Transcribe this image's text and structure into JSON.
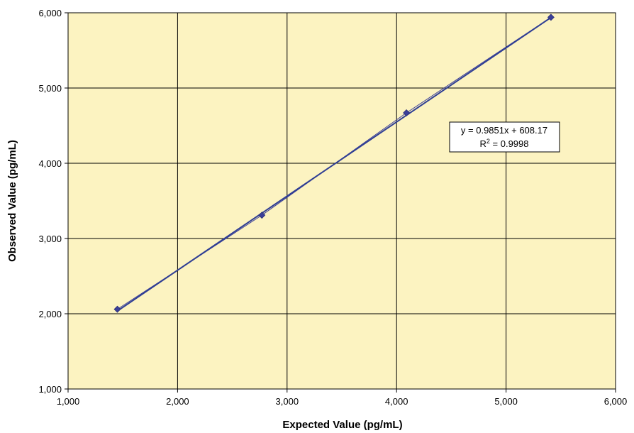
{
  "chart_data": {
    "type": "scatter",
    "title": "",
    "xlabel": "Expected Value (pg/mL)",
    "ylabel": "Observed Value (pg/mL)",
    "xlim": [
      1000,
      6000
    ],
    "ylim": [
      1000,
      6000
    ],
    "x_ticks": [
      1000,
      2000,
      3000,
      4000,
      5000,
      6000
    ],
    "y_ticks": [
      1000,
      2000,
      3000,
      4000,
      5000,
      6000
    ],
    "x_tick_labels": [
      "1,000",
      "2,000",
      "3,000",
      "4,000",
      "5,000",
      "6,000"
    ],
    "y_tick_labels": [
      "1,000",
      "2,000",
      "3,000",
      "4,000",
      "5,000",
      "6,000"
    ],
    "grid": true,
    "legend": "none",
    "series": [
      {
        "x": [
          1450,
          2770,
          4090,
          5410
        ],
        "y": [
          2060,
          3310,
          4670,
          5940
        ]
      }
    ],
    "trendline": {
      "type": "linear",
      "slope": 0.9851,
      "intercept": 608.17
    },
    "annotation": {
      "equation": "y = 0.9851x + 608.17",
      "r2_prefix": "R",
      "r2_sup": "2",
      "r2_value": " = 0.9998"
    },
    "colors": {
      "plot_background": "#FCF3C1",
      "grid": "#000000",
      "series": "#3B3F98",
      "trendline": "#2F3E94"
    }
  }
}
